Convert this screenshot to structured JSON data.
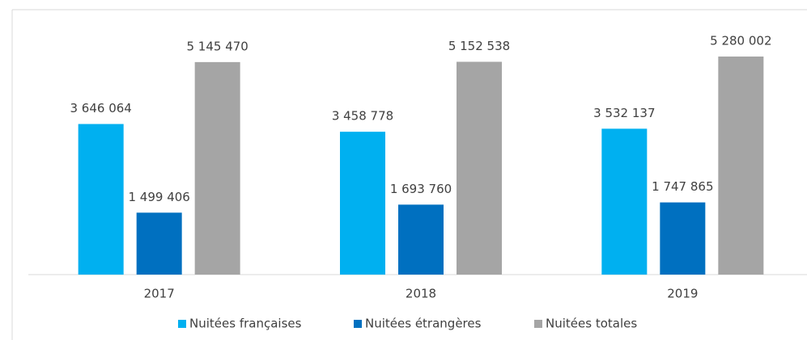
{
  "chart_data": {
    "type": "bar",
    "categories": [
      "2017",
      "2018",
      "2019"
    ],
    "series": [
      {
        "name": "Nuitées françaises",
        "color": "#00b0f0",
        "values": [
          3646064,
          3458778,
          3532137
        ],
        "value_labels": [
          "3 646 064",
          "3 458 778",
          "3 532 137"
        ]
      },
      {
        "name": "Nuitées étrangères",
        "color": "#0070c0",
        "values": [
          1499406,
          1693760,
          1747865
        ],
        "value_labels": [
          "1 499 406",
          "1 693 760",
          "1 747 865"
        ]
      },
      {
        "name": "Nuitées totales",
        "color": "#a5a5a5",
        "values": [
          5145470,
          5152538,
          5280002
        ],
        "value_labels": [
          "5 145 470",
          "5 152 538",
          "5 280 002"
        ]
      }
    ]
  }
}
